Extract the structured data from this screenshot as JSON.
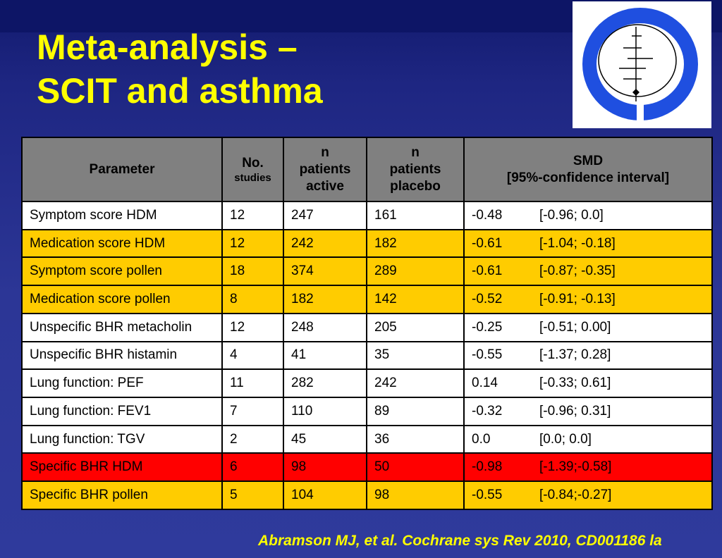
{
  "slide": {
    "title_line1": "Meta-analysis –",
    "title_line2": "SCIT and asthma",
    "citation": "Abramson MJ, et al.  Cochrane sys Rev 2010, CD001186 la"
  },
  "logo": {
    "icon": "cochrane-logo-icon",
    "colors": {
      "ring": "#1f4fe0",
      "background": "#ffffff"
    }
  },
  "colors": {
    "title": "#ffff00",
    "header": "#808080",
    "white_row": "#ffffff",
    "orange_row": "#ffcc00",
    "red_row": "#ff0000"
  },
  "table": {
    "headers": {
      "parameter": "Parameter",
      "studies_main": "No.",
      "studies_sub": "studies",
      "active_1": "n",
      "active_2": "patients",
      "active_3": "active",
      "placebo_1": "n",
      "placebo_2": "patients",
      "placebo_3": "placebo",
      "smd_1": "SMD",
      "smd_2": "[95%-confidence interval]"
    },
    "rows": [
      {
        "highlight": "white",
        "parameter": "Symptom score HDM",
        "studies": "12",
        "active": "247",
        "placebo": "161",
        "smd": "-0.48",
        "ci": "[-0.96; 0.0]"
      },
      {
        "highlight": "orange",
        "parameter": "Medication score HDM",
        "studies": "12",
        "active": "242",
        "placebo": "182",
        "smd": "-0.61",
        "ci": "[-1.04; -0.18]"
      },
      {
        "highlight": "orange",
        "parameter": "Symptom score pollen",
        "studies": "18",
        "active": "374",
        "placebo": "289",
        "smd": "-0.61",
        "ci": "[-0.87; -0.35]"
      },
      {
        "highlight": "orange",
        "parameter": "Medication score pollen",
        "studies": "8",
        "active": "182",
        "placebo": "142",
        "smd": "-0.52",
        "ci": "[-0.91; -0.13]"
      },
      {
        "highlight": "white",
        "parameter": "Unspecific BHR metacholin",
        "studies": "12",
        "active": "248",
        "placebo": "205",
        "smd": "-0.25",
        "ci": "[-0.51; 0.00]"
      },
      {
        "highlight": "white",
        "parameter": "Unspecific BHR histamin",
        "studies": "4",
        "active": "41",
        "placebo": "35",
        "smd": "-0.55",
        "ci": "[-1.37; 0.28]"
      },
      {
        "highlight": "white",
        "parameter": "Lung function: PEF",
        "studies": "11",
        "active": "282",
        "placebo": "242",
        "smd": "0.14",
        "ci": "[-0.33; 0.61]"
      },
      {
        "highlight": "white",
        "parameter": "Lung function: FEV1",
        "studies": "7",
        "active": "110",
        "placebo": "89",
        "smd": "-0.32",
        "ci": "[-0.96; 0.31]"
      },
      {
        "highlight": "white",
        "parameter": "Lung function: TGV",
        "studies": "2",
        "active": "45",
        "placebo": "36",
        "smd": "0.0",
        "ci": "[0.0; 0.0]"
      },
      {
        "highlight": "red",
        "parameter": "Specific BHR HDM",
        "studies": "6",
        "active": "98",
        "placebo": "50",
        "smd": "-0.98",
        "ci": "[-1.39;-0.58]"
      },
      {
        "highlight": "orange",
        "parameter": "Specific BHR pollen",
        "studies": "5",
        "active": "104",
        "placebo": "98",
        "smd": "-0.55",
        "ci": "[-0.84;-0.27]"
      }
    ]
  }
}
